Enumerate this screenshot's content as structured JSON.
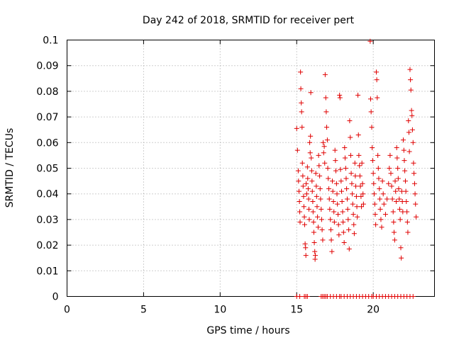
{
  "chart_data": {
    "type": "scatter",
    "title": "Day 242 of 2018, SRMTID for receiver pert",
    "xlabel": "GPS time / hours",
    "ylabel": "SRMTID / TECUs",
    "xlim": [
      0,
      24
    ],
    "ylim": [
      0,
      0.1
    ],
    "xticks": [
      0,
      5,
      10,
      15,
      20
    ],
    "yticks": [
      0,
      0.01,
      0.02,
      0.03,
      0.04,
      0.05,
      0.06,
      0.07,
      0.08,
      0.09,
      0.1
    ],
    "ytick_labels": [
      "0",
      "0.01",
      "0.02",
      "0.03",
      "0.04",
      "0.05",
      "0.06",
      "0.07",
      "0.08",
      "0.09",
      "0.1"
    ],
    "grid": true,
    "marker": "plus",
    "color": "#e00000",
    "points": [
      [
        15.0,
        0.0655
      ],
      [
        15.05,
        0.057
      ],
      [
        15.1,
        0.049
      ],
      [
        15.12,
        0.045
      ],
      [
        15.15,
        0.041
      ],
      [
        15.18,
        0.037
      ],
      [
        15.2,
        0.033
      ],
      [
        15.22,
        0.029
      ],
      [
        15.25,
        0.0875
      ],
      [
        15.27,
        0.081
      ],
      [
        15.3,
        0.0755
      ],
      [
        15.32,
        0.072
      ],
      [
        15.35,
        0.066
      ],
      [
        15.37,
        0.052
      ],
      [
        15.4,
        0.047
      ],
      [
        15.42,
        0.043
      ],
      [
        15.45,
        0.039
      ],
      [
        15.47,
        0.035
      ],
      [
        15.5,
        0.031
      ],
      [
        15.52,
        0.028
      ],
      [
        15.55,
        0.0205
      ],
      [
        15.58,
        0.019
      ],
      [
        15.6,
        0.016
      ],
      [
        15.62,
        0.044
      ],
      [
        15.65,
        0.04
      ],
      [
        15.7,
        0.0505
      ],
      [
        15.72,
        0.046
      ],
      [
        15.75,
        0.042
      ],
      [
        15.78,
        0.038
      ],
      [
        15.8,
        0.034
      ],
      [
        15.82,
        0.03
      ],
      [
        15.85,
        0.06
      ],
      [
        15.88,
        0.056
      ],
      [
        15.9,
        0.0625
      ],
      [
        15.92,
        0.0795
      ],
      [
        15.95,
        0.054
      ],
      [
        15.98,
        0.049
      ],
      [
        16.0,
        0.045
      ],
      [
        16.02,
        0.041
      ],
      [
        16.05,
        0.037
      ],
      [
        16.07,
        0.033
      ],
      [
        16.1,
        0.029
      ],
      [
        16.12,
        0.025
      ],
      [
        16.15,
        0.021
      ],
      [
        16.18,
        0.0175
      ],
      [
        16.2,
        0.0145
      ],
      [
        16.22,
        0.016
      ],
      [
        16.25,
        0.048
      ],
      [
        16.28,
        0.043
      ],
      [
        16.3,
        0.039
      ],
      [
        16.33,
        0.035
      ],
      [
        16.36,
        0.031
      ],
      [
        16.4,
        0.027
      ],
      [
        16.43,
        0.055
      ],
      [
        16.46,
        0.051
      ],
      [
        16.5,
        0.047
      ],
      [
        16.53,
        0.042
      ],
      [
        16.56,
        0.038
      ],
      [
        16.6,
        0.034
      ],
      [
        16.63,
        0.03
      ],
      [
        16.66,
        0.026
      ],
      [
        16.7,
        0.022
      ],
      [
        16.73,
        0.06
      ],
      [
        16.76,
        0.056
      ],
      [
        16.8,
        0.0585
      ],
      [
        16.83,
        0.052
      ],
      [
        16.86,
        0.0865
      ],
      [
        16.9,
        0.0775
      ],
      [
        16.93,
        0.072
      ],
      [
        16.96,
        0.066
      ],
      [
        17.0,
        0.061
      ],
      [
        17.03,
        0.05
      ],
      [
        17.06,
        0.046
      ],
      [
        17.1,
        0.042
      ],
      [
        17.13,
        0.038
      ],
      [
        17.16,
        0.034
      ],
      [
        17.2,
        0.03
      ],
      [
        17.23,
        0.026
      ],
      [
        17.26,
        0.022
      ],
      [
        17.3,
        0.0175
      ],
      [
        17.33,
        0.045
      ],
      [
        17.36,
        0.041
      ],
      [
        17.4,
        0.037
      ],
      [
        17.43,
        0.033
      ],
      [
        17.46,
        0.029
      ],
      [
        17.5,
        0.057
      ],
      [
        17.53,
        0.053
      ],
      [
        17.56,
        0.049
      ],
      [
        17.6,
        0.044
      ],
      [
        17.63,
        0.04
      ],
      [
        17.66,
        0.036
      ],
      [
        17.7,
        0.032
      ],
      [
        17.73,
        0.028
      ],
      [
        17.76,
        0.024
      ],
      [
        17.8,
        0.0785
      ],
      [
        17.83,
        0.0775
      ],
      [
        17.86,
        0.0495
      ],
      [
        17.9,
        0.045
      ],
      [
        17.93,
        0.041
      ],
      [
        17.96,
        0.037
      ],
      [
        18.0,
        0.033
      ],
      [
        18.03,
        0.029
      ],
      [
        18.06,
        0.025
      ],
      [
        18.1,
        0.021
      ],
      [
        18.13,
        0.058
      ],
      [
        18.16,
        0.054
      ],
      [
        18.2,
        0.05
      ],
      [
        18.23,
        0.046
      ],
      [
        18.26,
        0.042
      ],
      [
        18.3,
        0.038
      ],
      [
        18.33,
        0.034
      ],
      [
        18.36,
        0.03
      ],
      [
        18.4,
        0.026
      ],
      [
        18.43,
        0.0185
      ],
      [
        18.46,
        0.0685
      ],
      [
        18.5,
        0.062
      ],
      [
        18.53,
        0.055
      ],
      [
        18.56,
        0.048
      ],
      [
        18.6,
        0.044
      ],
      [
        18.63,
        0.04
      ],
      [
        18.66,
        0.036
      ],
      [
        18.7,
        0.032
      ],
      [
        18.73,
        0.028
      ],
      [
        18.76,
        0.0245
      ],
      [
        18.8,
        0.052
      ],
      [
        18.83,
        0.047
      ],
      [
        18.86,
        0.043
      ],
      [
        18.9,
        0.039
      ],
      [
        18.93,
        0.035
      ],
      [
        18.96,
        0.031
      ],
      [
        19.0,
        0.0785
      ],
      [
        19.03,
        0.063
      ],
      [
        19.06,
        0.055
      ],
      [
        19.1,
        0.051
      ],
      [
        19.13,
        0.047
      ],
      [
        19.16,
        0.043
      ],
      [
        19.2,
        0.039
      ],
      [
        19.23,
        0.035
      ],
      [
        19.26,
        0.052
      ],
      [
        19.3,
        0.044
      ],
      [
        19.33,
        0.04
      ],
      [
        19.36,
        0.036
      ],
      [
        19.8,
        0.0995
      ],
      [
        19.83,
        0.077
      ],
      [
        19.86,
        0.072
      ],
      [
        19.9,
        0.066
      ],
      [
        19.93,
        0.058
      ],
      [
        19.96,
        0.053
      ],
      [
        20.0,
        0.048
      ],
      [
        20.03,
        0.044
      ],
      [
        20.06,
        0.04
      ],
      [
        20.1,
        0.036
      ],
      [
        20.13,
        0.032
      ],
      [
        20.16,
        0.028
      ],
      [
        20.2,
        0.0875
      ],
      [
        20.23,
        0.0845
      ],
      [
        20.26,
        0.0775
      ],
      [
        20.3,
        0.055
      ],
      [
        20.33,
        0.05
      ],
      [
        20.36,
        0.046
      ],
      [
        20.4,
        0.042
      ],
      [
        20.43,
        0.038
      ],
      [
        20.46,
        0.034
      ],
      [
        20.5,
        0.03
      ],
      [
        20.55,
        0.027
      ],
      [
        20.6,
        0.045
      ],
      [
        20.65,
        0.04
      ],
      [
        20.7,
        0.036
      ],
      [
        20.8,
        0.032
      ],
      [
        20.9,
        0.038
      ],
      [
        21.0,
        0.044
      ],
      [
        21.05,
        0.05
      ],
      [
        21.1,
        0.055
      ],
      [
        21.15,
        0.048
      ],
      [
        21.2,
        0.043
      ],
      [
        21.25,
        0.038
      ],
      [
        21.3,
        0.033
      ],
      [
        21.33,
        0.029
      ],
      [
        21.36,
        0.025
      ],
      [
        21.4,
        0.022
      ],
      [
        21.43,
        0.045
      ],
      [
        21.46,
        0.041
      ],
      [
        21.5,
        0.037
      ],
      [
        21.53,
        0.058
      ],
      [
        21.56,
        0.054
      ],
      [
        21.6,
        0.05
      ],
      [
        21.63,
        0.046
      ],
      [
        21.66,
        0.042
      ],
      [
        21.7,
        0.038
      ],
      [
        21.73,
        0.034
      ],
      [
        21.76,
        0.03
      ],
      [
        21.8,
        0.019
      ],
      [
        21.83,
        0.015
      ],
      [
        21.86,
        0.041
      ],
      [
        21.9,
        0.037
      ],
      [
        21.93,
        0.033
      ],
      [
        21.96,
        0.061
      ],
      [
        22.0,
        0.057
      ],
      [
        22.03,
        0.053
      ],
      [
        22.06,
        0.049
      ],
      [
        22.1,
        0.045
      ],
      [
        22.13,
        0.041
      ],
      [
        22.16,
        0.037
      ],
      [
        22.2,
        0.033
      ],
      [
        22.23,
        0.029
      ],
      [
        22.26,
        0.025
      ],
      [
        22.3,
        0.0685
      ],
      [
        22.33,
        0.064
      ],
      [
        22.36,
        0.0565
      ],
      [
        22.4,
        0.0885
      ],
      [
        22.43,
        0.0845
      ],
      [
        22.46,
        0.0805
      ],
      [
        22.5,
        0.0725
      ],
      [
        22.53,
        0.0705
      ],
      [
        22.56,
        0.065
      ],
      [
        22.6,
        0.06
      ],
      [
        22.63,
        0.052
      ],
      [
        22.66,
        0.048
      ],
      [
        22.7,
        0.044
      ],
      [
        22.73,
        0.04
      ],
      [
        22.76,
        0.036
      ],
      [
        22.8,
        0.031
      ],
      [
        15.0,
        0
      ],
      [
        15.2,
        0
      ],
      [
        15.5,
        0
      ],
      [
        15.6,
        0
      ],
      [
        15.7,
        0
      ],
      [
        16.6,
        0
      ],
      [
        16.7,
        0
      ],
      [
        16.8,
        0
      ],
      [
        16.9,
        0
      ],
      [
        17.0,
        0
      ],
      [
        17.2,
        0
      ],
      [
        17.4,
        0
      ],
      [
        17.6,
        0
      ],
      [
        17.8,
        0
      ],
      [
        17.9,
        0
      ],
      [
        18.1,
        0
      ],
      [
        18.3,
        0
      ],
      [
        18.5,
        0
      ],
      [
        18.7,
        0
      ],
      [
        18.9,
        0
      ],
      [
        19.1,
        0
      ],
      [
        19.3,
        0
      ],
      [
        19.5,
        0
      ],
      [
        19.7,
        0
      ],
      [
        19.9,
        0
      ],
      [
        20.0,
        0
      ],
      [
        20.2,
        0
      ],
      [
        20.4,
        0
      ],
      [
        20.6,
        0
      ],
      [
        20.8,
        0
      ],
      [
        21.0,
        0
      ],
      [
        21.2,
        0
      ],
      [
        21.4,
        0
      ],
      [
        21.6,
        0
      ],
      [
        21.8,
        0
      ],
      [
        22.0,
        0
      ],
      [
        22.2,
        0
      ],
      [
        22.4,
        0
      ],
      [
        22.6,
        0
      ]
    ]
  }
}
